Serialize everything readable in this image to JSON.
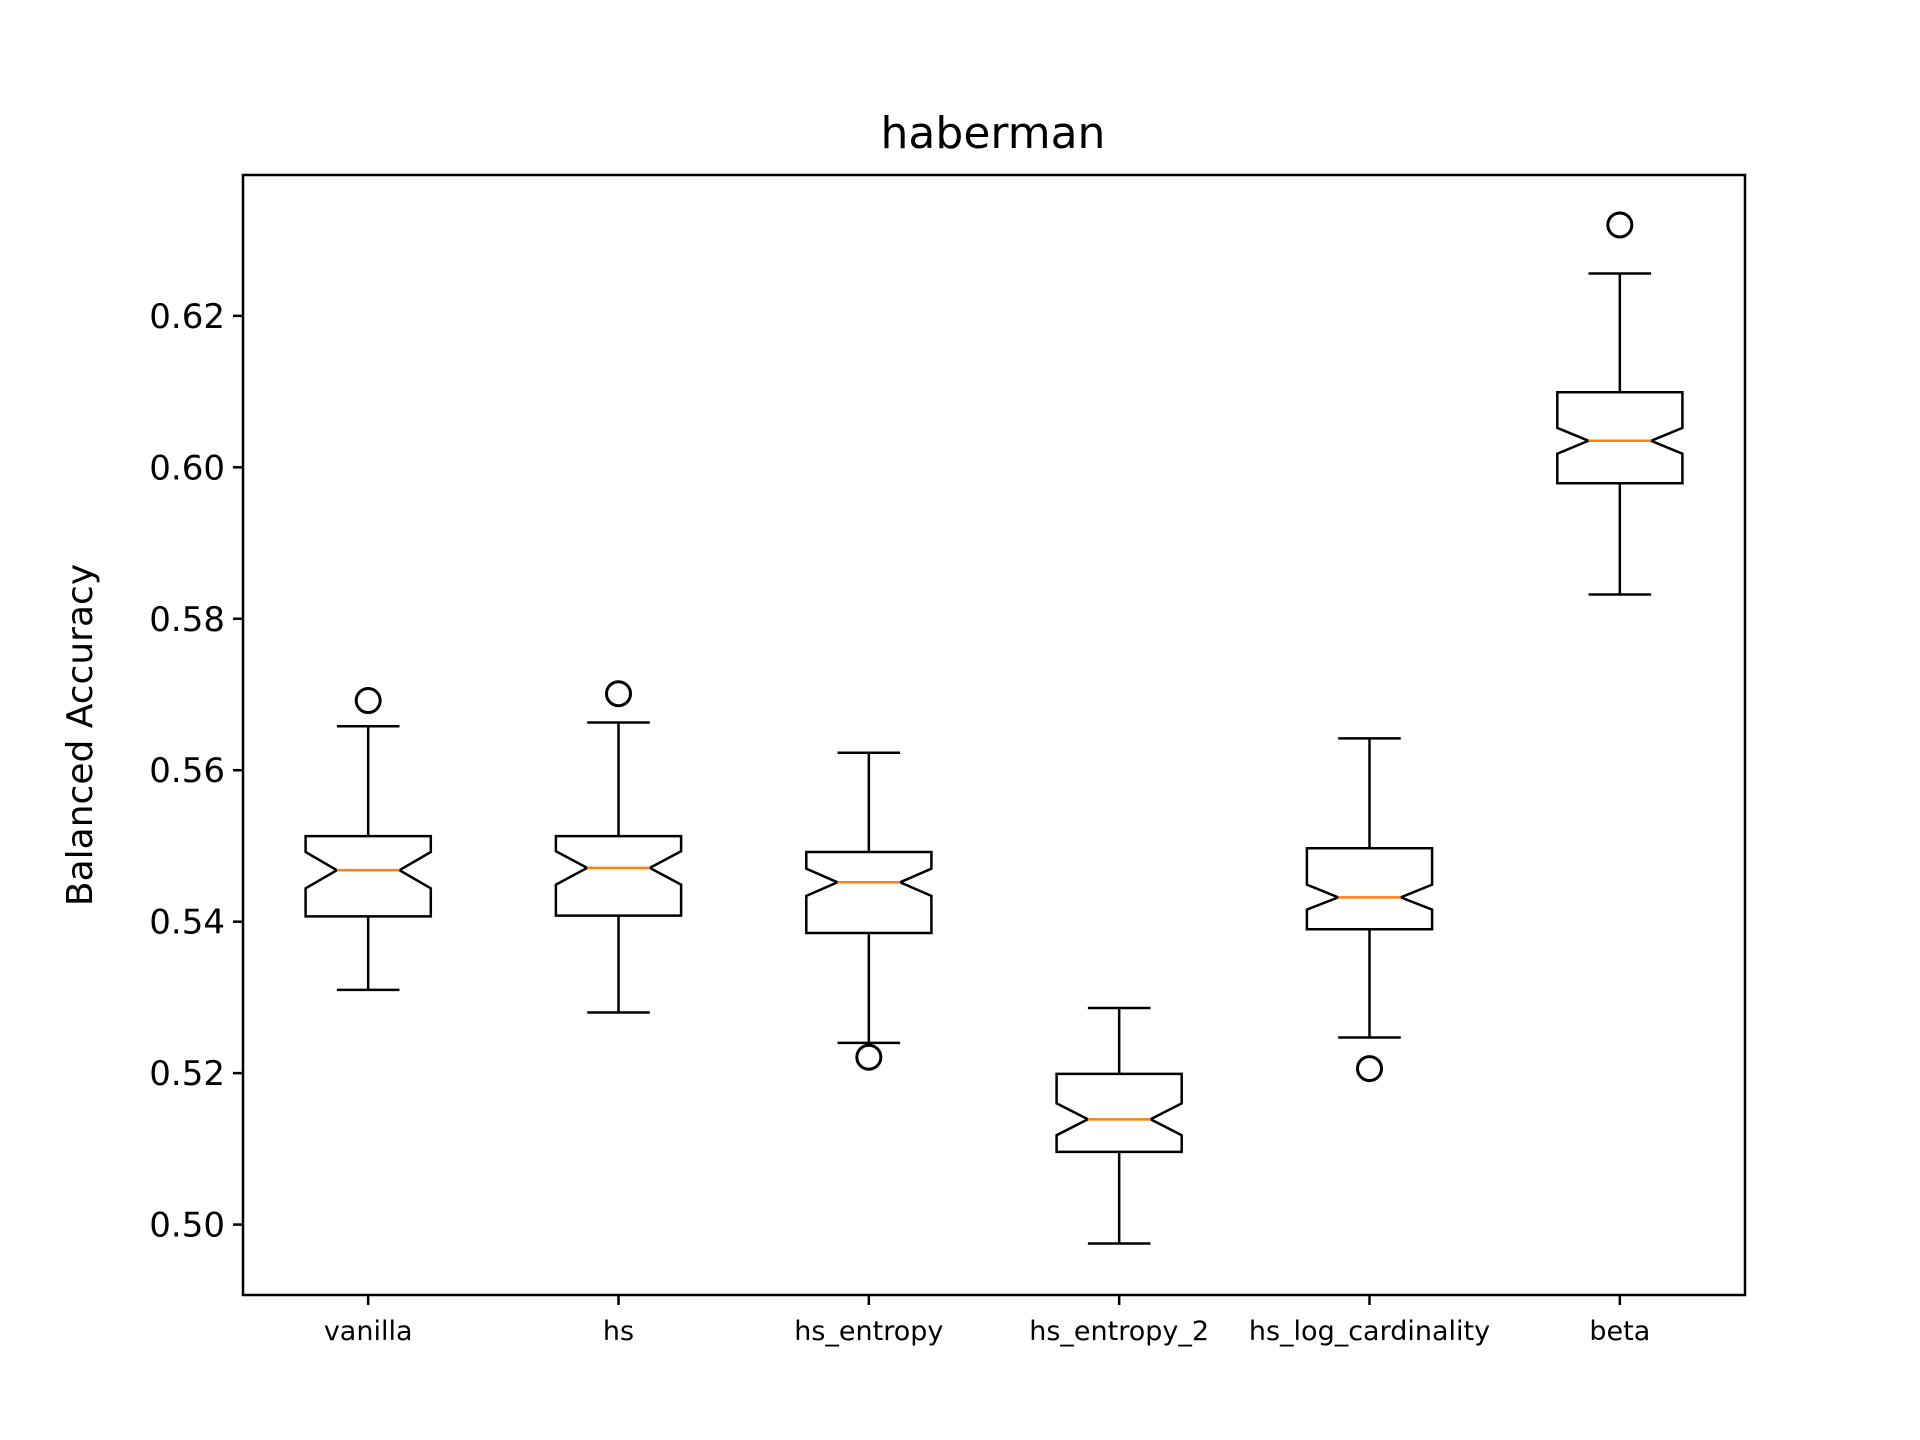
{
  "chart_data": {
    "type": "boxplot",
    "title": "haberman",
    "xlabel": "",
    "ylabel": "Balanced Accuracy",
    "ylim": [
      0.4907,
      0.6386
    ],
    "yticks": [
      0.5,
      0.52,
      0.54,
      0.56,
      0.58,
      0.6,
      0.62
    ],
    "ytick_labels": [
      "0.50",
      "0.52",
      "0.54",
      "0.56",
      "0.58",
      "0.60",
      "0.62"
    ],
    "grid": false,
    "notched": true,
    "categories": [
      "vanilla",
      "hs",
      "hs_entropy",
      "hs_entropy_2",
      "hs_log_cardinality",
      "beta"
    ],
    "boxes": [
      {
        "label": "vanilla",
        "whislo": 0.531,
        "q1": 0.5407,
        "med": 0.5468,
        "q3": 0.5513,
        "whishi": 0.5658,
        "notch_lo": 0.5444,
        "notch_hi": 0.5492,
        "fliers": [
          0.5692
        ]
      },
      {
        "label": "hs",
        "whislo": 0.528,
        "q1": 0.5408,
        "med": 0.5471,
        "q3": 0.5513,
        "whishi": 0.5663,
        "notch_lo": 0.5449,
        "notch_hi": 0.5493,
        "fliers": [
          0.5701
        ]
      },
      {
        "label": "hs_entropy",
        "whislo": 0.524,
        "q1": 0.5385,
        "med": 0.5452,
        "q3": 0.5492,
        "whishi": 0.5623,
        "notch_lo": 0.5434,
        "notch_hi": 0.547,
        "fliers": [
          0.5221
        ]
      },
      {
        "label": "hs_entropy_2",
        "whislo": 0.4975,
        "q1": 0.5096,
        "med": 0.5139,
        "q3": 0.5199,
        "whishi": 0.5286,
        "notch_lo": 0.5118,
        "notch_hi": 0.516,
        "fliers": []
      },
      {
        "label": "hs_log_cardinality",
        "whislo": 0.5247,
        "q1": 0.539,
        "med": 0.5432,
        "q3": 0.5497,
        "whishi": 0.5642,
        "notch_lo": 0.5416,
        "notch_hi": 0.5449,
        "fliers": [
          0.5206
        ]
      },
      {
        "label": "beta",
        "whislo": 0.5832,
        "q1": 0.5979,
        "med": 0.6035,
        "q3": 0.6099,
        "whishi": 0.6256,
        "notch_lo": 0.6018,
        "notch_hi": 0.6052,
        "fliers": [
          0.632
        ]
      }
    ],
    "colors": {
      "box": "#000000",
      "median": "#ff7f0e",
      "flier": "#000000"
    }
  }
}
